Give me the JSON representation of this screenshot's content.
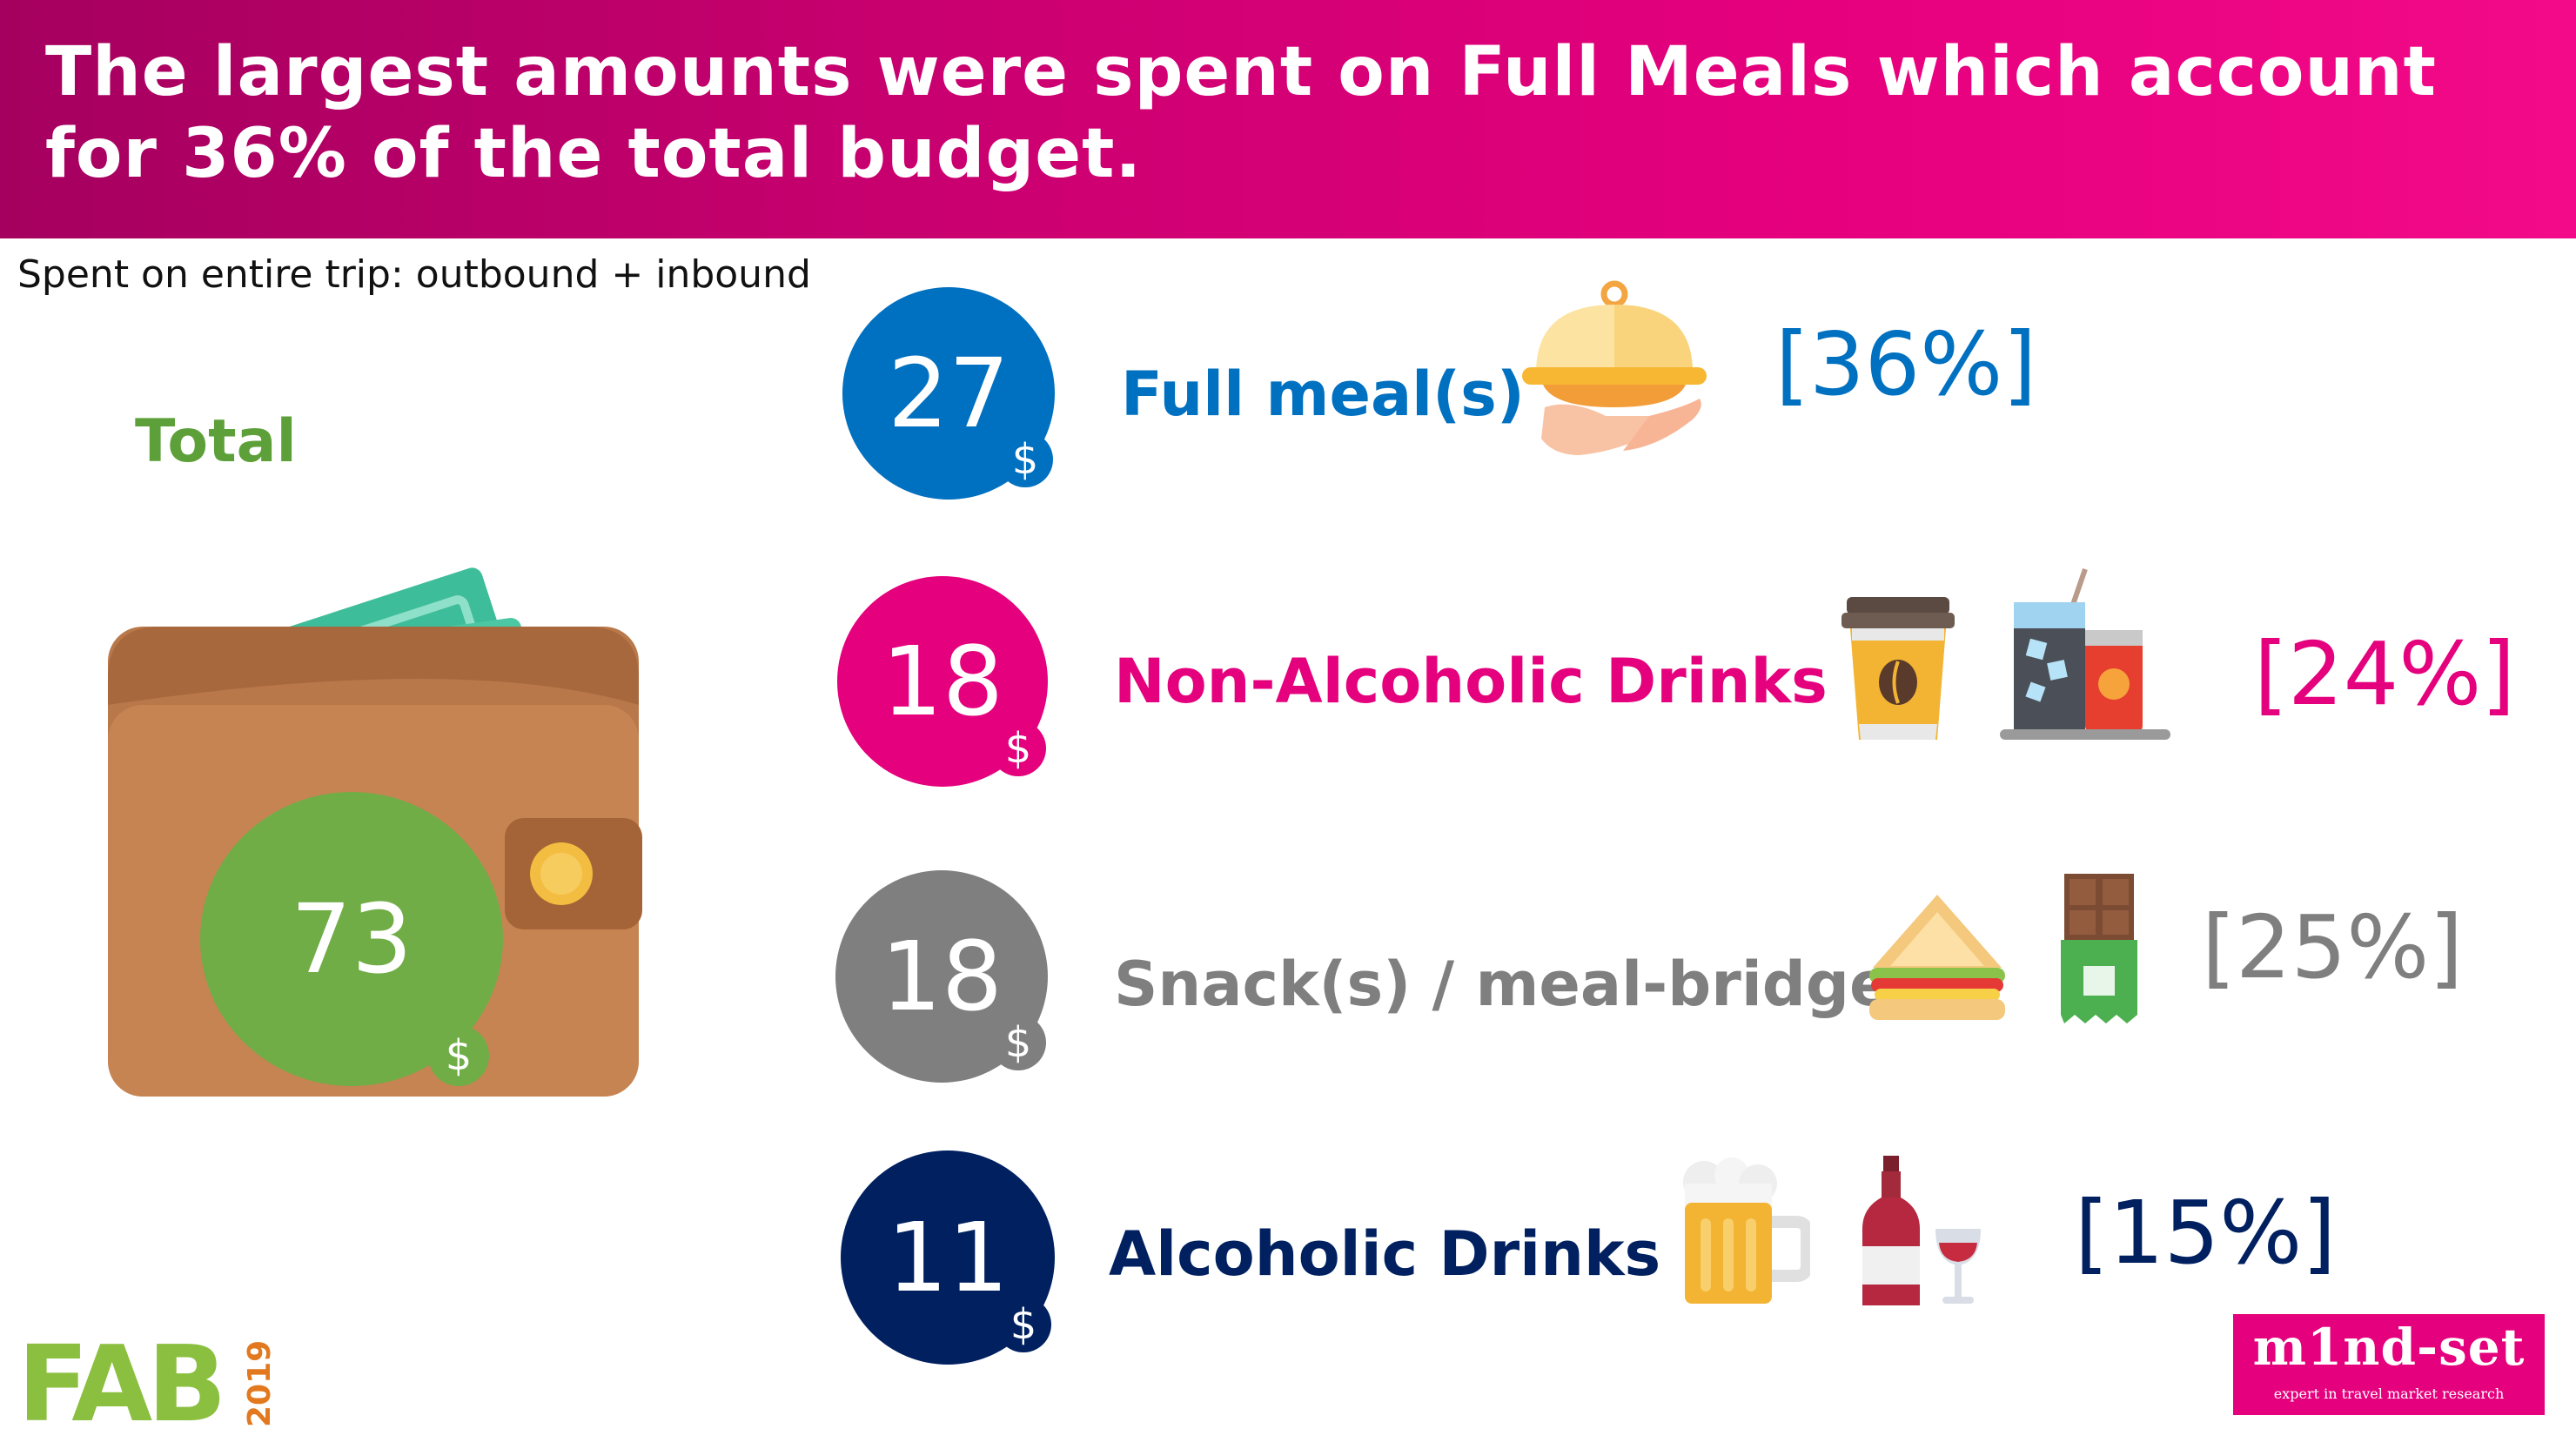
{
  "banner": {
    "title": "The largest amounts were spent on Full Meals which account for 36% of the total budget."
  },
  "subtitle": "Spent on entire trip: outbound + inbound",
  "total": {
    "label": "Total",
    "value": "73",
    "currency": "$",
    "color": "#70ad47"
  },
  "categories": [
    {
      "value": "27",
      "currency": "$",
      "label": "Full meal(s)",
      "percent": "[36%]",
      "color": "#0070c0",
      "icons": [
        "food-tray-icon"
      ]
    },
    {
      "value": "18",
      "currency": "$",
      "label": "Non-Alcoholic Drinks",
      "percent": "[24%]",
      "color": "#e5007d",
      "icons": [
        "coffee-cup-icon",
        "soft-drinks-icon"
      ]
    },
    {
      "value": "18",
      "currency": "$",
      "label": "Snack(s) / meal-bridge",
      "percent": "[25%]",
      "color": "#7f7f7f",
      "icons": [
        "sandwich-icon",
        "chocolate-bar-icon"
      ]
    },
    {
      "value": "11",
      "currency": "$",
      "label": "Alcoholic Drinks",
      "percent": "[15%]",
      "color": "#002060",
      "icons": [
        "beer-mug-icon",
        "wine-bottle-icon"
      ]
    }
  ],
  "logos": {
    "left": {
      "text": "FAB",
      "year": "2019"
    },
    "right": {
      "name": "m1nd-set",
      "tagline": "expert in travel market research"
    }
  }
}
